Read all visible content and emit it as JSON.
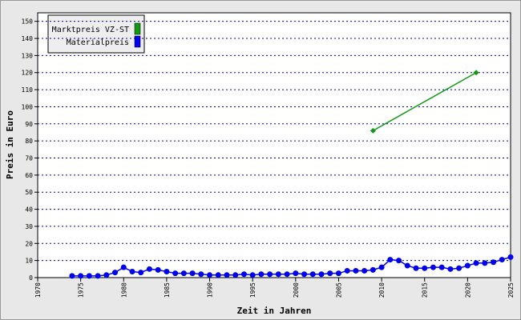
{
  "chart_data": {
    "type": "line",
    "xlabel": "Zeit in Jahren",
    "ylabel": "Preis in Euro",
    "xlim": [
      1970,
      2025
    ],
    "xticks": [
      1970,
      1975,
      1980,
      1985,
      1990,
      1995,
      2000,
      2005,
      2010,
      2015,
      2020,
      2025
    ],
    "ylim": [
      0,
      155
    ],
    "yticks": [
      0,
      10,
      20,
      30,
      40,
      50,
      60,
      70,
      80,
      90,
      100,
      110,
      120,
      130,
      140,
      150
    ],
    "grid": true,
    "legend": "top-left",
    "series": [
      {
        "name": "Marktpreis VZ-ST",
        "color": "#119911",
        "marker": "diamond",
        "x": [
          2009,
          2021
        ],
        "values": [
          86,
          120
        ]
      },
      {
        "name": "Materialpreis",
        "color": "#0000ee",
        "marker": "circle",
        "x": [
          1974,
          1975,
          1976,
          1977,
          1978,
          1979,
          1980,
          1981,
          1982,
          1983,
          1984,
          1985,
          1986,
          1987,
          1988,
          1989,
          1990,
          1991,
          1992,
          1993,
          1994,
          1995,
          1996,
          1997,
          1998,
          1999,
          2000,
          2001,
          2002,
          2003,
          2004,
          2005,
          2006,
          2007,
          2008,
          2009,
          2010,
          2011,
          2012,
          2013,
          2014,
          2015,
          2016,
          2017,
          2018,
          2019,
          2020,
          2021,
          2022,
          2023,
          2024,
          2025
        ],
        "values": [
          1,
          1,
          1,
          1,
          1.5,
          3,
          6,
          3.5,
          3,
          5,
          4.5,
          3.5,
          2.5,
          2.5,
          2.5,
          2,
          1.5,
          1.5,
          1.5,
          1.5,
          2,
          1.5,
          2,
          2,
          2,
          2,
          2.5,
          2,
          2,
          2,
          2.5,
          2.5,
          4,
          4,
          4,
          4.5,
          6,
          10.5,
          10,
          7,
          5.5,
          5.5,
          6,
          6,
          5,
          5.5,
          7,
          8.5,
          8.5,
          9,
          10.5,
          12
        ]
      }
    ]
  }
}
